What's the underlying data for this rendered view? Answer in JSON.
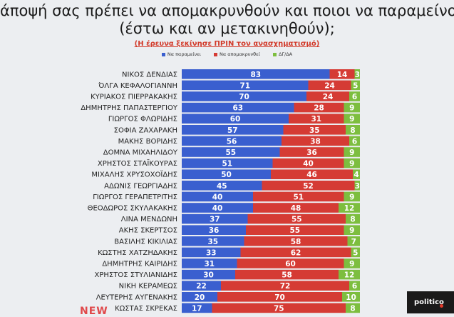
{
  "title_line1": "άποψή σας πρέπει να απομακρυνθούν και ποιοι να παραμείνουν",
  "title_line2": "(έστω και αν μετακινηθούν);",
  "subtitle": "(Η έρευνα ξεκίνησε ΠΡΙΝ τον ανασχηματισμό)",
  "badge_text": "politico",
  "new_tag": "NEW",
  "colors": {
    "stay": "#3a5fcf",
    "remove": "#d53b34",
    "dk": "#7dbe3f"
  },
  "chart_data": {
    "type": "bar",
    "orientation": "horizontal",
    "stacked": true,
    "xlim": [
      0,
      100
    ],
    "legend_position": "top",
    "categories": [
      "ΝΙΚΟΣ ΔΕΝΔΙΑΣ",
      "ΌΛΓΑ ΚΕΦΑΛΟΓΙΑΝΝΗ",
      "ΚΥΡΙΑΚΟΣ ΠΙΕΡΡΑΚΑΚΗΣ",
      "ΔΗΜΗΤΡΗΣ ΠΑΠΑΣΤΕΡΓΙΟΥ",
      "ΓΙΩΡΓΟΣ ΦΛΩΡΙΔΗΣ",
      "ΣΟΦΙΑ ΖΑΧΑΡΑΚΗ",
      "ΜΑΚΗΣ ΒΟΡΙΔΗΣ",
      "ΔΟΜΝΑ ΜΙΧΑΗΛΙΔΟΥ",
      "ΧΡΗΣΤΟΣ ΣΤΑΪΚΟΥΡΑΣ",
      "ΜΙΧΑΛΗΣ ΧΡΥΣΟΧΟΪΔΗΣ",
      "ΑΔΩΝΙΣ ΓΕΩΡΓΙΑΔΗΣ",
      "ΓΙΩΡΓΟΣ ΓΕΡΑΠΕΤΡΙΤΗΣ",
      "ΘΕΟΔΩΡΟΣ ΣΚΥΛΑΚΑΚΗΣ",
      "ΛΙΝΑ ΜΕΝΔΩΝΗ",
      "ΑΚΗΣ ΣΚΕΡΤΣΟΣ",
      "ΒΑΣΙΛΗΣ ΚΙΚΙΛΙΑΣ",
      "ΚΩΣΤΗΣ ΧΑΤΖΗΔΑΚΗΣ",
      "ΔΗΜΗΤΡΗΣ ΚΑΙΡΙΔΗΣ",
      "ΧΡΗΣΤΟΣ ΣΤΥΛΙΑΝΙΔΗΣ",
      "ΝΙΚΗ ΚΕΡΑΜΕΩΣ",
      "ΛΕΥΤΕΡΗΣ ΑΥΓΕΝΑΚΗΣ",
      "ΚΩΣΤΑΣ ΣΚΡΕΚΑΣ"
    ],
    "series": [
      {
        "name": "Να παραμείνει",
        "values": [
          83,
          71,
          70,
          63,
          60,
          57,
          56,
          55,
          51,
          50,
          45,
          40,
          40,
          37,
          36,
          35,
          33,
          31,
          30,
          22,
          20,
          17
        ]
      },
      {
        "name": "Να απομακρυνθεί",
        "values": [
          14,
          24,
          24,
          28,
          31,
          35,
          38,
          36,
          40,
          46,
          52,
          51,
          48,
          55,
          55,
          58,
          62,
          60,
          58,
          72,
          70,
          75
        ]
      },
      {
        "name": "ΔΓ/ΔΑ",
        "values": [
          3,
          5,
          6,
          9,
          9,
          8,
          6,
          9,
          9,
          4,
          3,
          9,
          12,
          8,
          9,
          7,
          5,
          9,
          12,
          6,
          10,
          8
        ]
      }
    ]
  }
}
